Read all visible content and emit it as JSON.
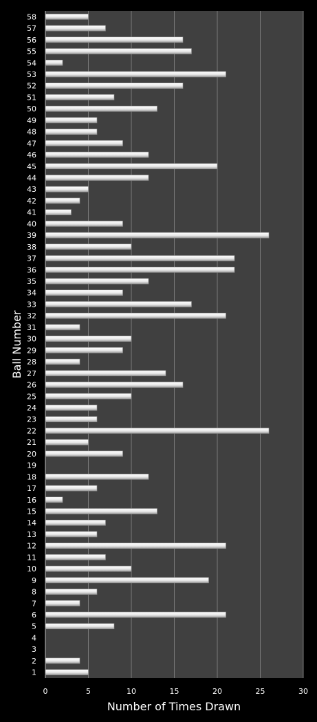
{
  "chart_data": {
    "type": "bar",
    "orientation": "horizontal",
    "title": "",
    "xlabel": "Number of Times Drawn",
    "ylabel": "Ball Number",
    "xlim": [
      0,
      30
    ],
    "xticks": [
      0,
      5,
      10,
      15,
      20,
      25,
      30
    ],
    "grid": "vertical",
    "legend": "none",
    "colors": {
      "background": "#000000",
      "plot_area": "#404040",
      "bar": "#e8e8e8",
      "grid": "#7a7a7a",
      "text": "#ffffff"
    },
    "categories": [
      "1",
      "2",
      "3",
      "4",
      "5",
      "6",
      "7",
      "8",
      "9",
      "10",
      "11",
      "12",
      "13",
      "14",
      "15",
      "16",
      "17",
      "18",
      "19",
      "20",
      "21",
      "22",
      "23",
      "24",
      "25",
      "26",
      "27",
      "28",
      "29",
      "30",
      "31",
      "32",
      "33",
      "34",
      "35",
      "36",
      "37",
      "38",
      "39",
      "40",
      "41",
      "42",
      "43",
      "44",
      "45",
      "46",
      "47",
      "48",
      "49",
      "50",
      "51",
      "52",
      "53",
      "54",
      "55",
      "56",
      "57",
      "58"
    ],
    "values": [
      5,
      4,
      0,
      0,
      8,
      21,
      4,
      6,
      19,
      10,
      7,
      21,
      6,
      7,
      13,
      2,
      6,
      12,
      0,
      9,
      5,
      26,
      6,
      6,
      10,
      16,
      14,
      4,
      9,
      10,
      4,
      21,
      17,
      9,
      12,
      22,
      22,
      10,
      26,
      9,
      3,
      4,
      5,
      12,
      20,
      12,
      9,
      6,
      6,
      13,
      8,
      16,
      21,
      2,
      17,
      16,
      7,
      5
    ]
  }
}
